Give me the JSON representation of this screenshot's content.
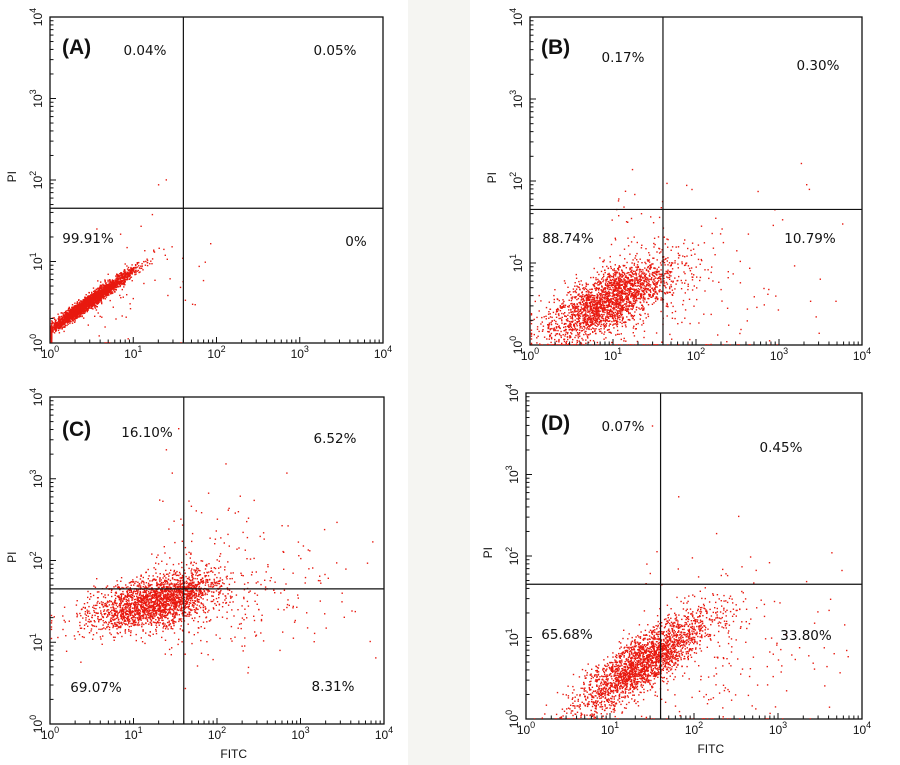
{
  "chart_data": [
    {
      "type": "scatter",
      "panel": "(A)",
      "xlabel": "",
      "ylabel": "PI",
      "x_scale": "log",
      "y_scale": "log",
      "xlim": [
        1,
        10000
      ],
      "ylim": [
        1,
        10000
      ],
      "x_ticks": [
        "10",
        "10",
        "10",
        "10",
        "10"
      ],
      "x_tick_exponents": [
        "0",
        "1",
        "2",
        "3",
        "4"
      ],
      "y_ticks": [
        "10",
        "10",
        "10",
        "10",
        "10"
      ],
      "y_tick_exponents": [
        "0",
        "1",
        "2",
        "3",
        "4"
      ],
      "gate": {
        "x": 40,
        "y": 45
      },
      "quadrants": {
        "upper_left": "0.04%",
        "upper_right": "0.05%",
        "lower_left": "99.91%",
        "lower_right": "0%"
      },
      "population": {
        "center_log": [
          0.45,
          0.5
        ],
        "spread_log": [
          0.27,
          0.12
        ],
        "correlation": 0.93,
        "tail_fraction": 0.02
      }
    },
    {
      "type": "scatter",
      "panel": "(B)",
      "xlabel": "",
      "ylabel": "PI",
      "x_scale": "log",
      "y_scale": "log",
      "xlim": [
        1,
        10000
      ],
      "ylim": [
        1,
        10000
      ],
      "x_ticks": [
        "10",
        "10",
        "10",
        "10",
        "10"
      ],
      "x_tick_exponents": [
        "0",
        "1",
        "2",
        "3",
        "4"
      ],
      "y_ticks": [
        "10",
        "10",
        "10",
        "10",
        "10"
      ],
      "y_tick_exponents": [
        "0",
        "1",
        "2",
        "3",
        "4"
      ],
      "gate": {
        "x": 40,
        "y": 45
      },
      "quadrants": {
        "upper_left": "0.17%",
        "upper_right": "0.30%",
        "lower_left": "88.74%",
        "lower_right": "10.79%"
      },
      "population": {
        "center_log": [
          0.95,
          0.55
        ],
        "spread_log": [
          0.38,
          0.22
        ],
        "correlation": 0.55,
        "tail_fraction": 0.1
      }
    },
    {
      "type": "scatter",
      "panel": "(C)",
      "xlabel": "FITC",
      "ylabel": "PI",
      "x_scale": "log",
      "y_scale": "log",
      "xlim": [
        1,
        10000
      ],
      "ylim": [
        1,
        10000
      ],
      "x_ticks": [
        "10",
        "10",
        "10",
        "10",
        "10"
      ],
      "x_tick_exponents": [
        "0",
        "1",
        "2",
        "3",
        "4"
      ],
      "y_ticks": [
        "10",
        "10",
        "10",
        "10",
        "10"
      ],
      "y_tick_exponents": [
        "0",
        "1",
        "2",
        "3",
        "4"
      ],
      "gate": {
        "x": 40,
        "y": 45
      },
      "quadrants": {
        "upper_left": "16.10%",
        "upper_right": "6.52%",
        "lower_left": "69.07%",
        "lower_right": "8.31%"
      },
      "population": {
        "center_log": [
          1.25,
          1.5
        ],
        "spread_log": [
          0.4,
          0.16
        ],
        "correlation": 0.3,
        "tail_fraction": 0.14
      }
    },
    {
      "type": "scatter",
      "panel": "(D)",
      "xlabel": "FITC",
      "ylabel": "PI",
      "x_scale": "log",
      "y_scale": "log",
      "xlim": [
        1,
        10000
      ],
      "ylim": [
        1,
        10000
      ],
      "x_ticks": [
        "10",
        "10",
        "10",
        "10",
        "10"
      ],
      "x_tick_exponents": [
        "0",
        "1",
        "2",
        "3",
        "4"
      ],
      "y_ticks": [
        "10",
        "10",
        "10",
        "10",
        "10"
      ],
      "y_tick_exponents": [
        "0",
        "1",
        "2",
        "3",
        "4"
      ],
      "gate": {
        "x": 40,
        "y": 45
      },
      "quadrants": {
        "upper_left": "0.07%",
        "upper_right": "0.45%",
        "lower_left": "65.68%",
        "lower_right": "33.80%"
      },
      "population": {
        "center_log": [
          1.4,
          0.7
        ],
        "spread_log": [
          0.4,
          0.26
        ],
        "correlation": 0.75,
        "tail_fraction": 0.08
      }
    }
  ],
  "colors": {
    "dots": "#e8190f",
    "lines": "#111111",
    "background": "#ffffff",
    "divider": "#f5f5f2"
  }
}
